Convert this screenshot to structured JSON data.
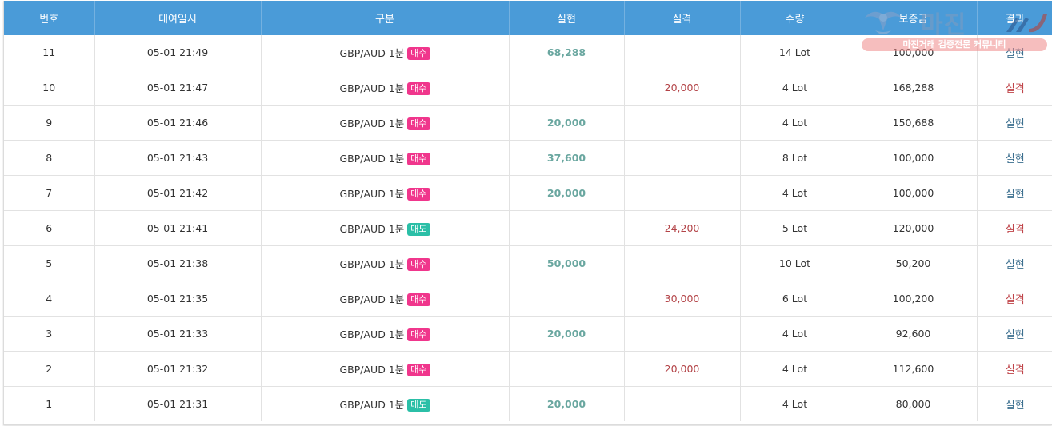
{
  "table": {
    "headers": [
      "번호",
      "대여일시",
      "구분",
      "실현",
      "실격",
      "수량",
      "보증금",
      "결과"
    ],
    "rows": [
      {
        "no": "11",
        "datetime": "05-01 21:49",
        "pair": "GBP/AUD 1분",
        "side": "매수",
        "side_type": "buy",
        "profit": "68,288",
        "loss": "",
        "qty": "14 Lot",
        "deposit": "100,000",
        "result": "실현",
        "result_type": "win"
      },
      {
        "no": "10",
        "datetime": "05-01 21:47",
        "pair": "GBP/AUD 1분",
        "side": "매수",
        "side_type": "buy",
        "profit": "",
        "loss": "20,000",
        "qty": "4 Lot",
        "deposit": "168,288",
        "result": "실격",
        "result_type": "loss"
      },
      {
        "no": "9",
        "datetime": "05-01 21:46",
        "pair": "GBP/AUD 1분",
        "side": "매수",
        "side_type": "buy",
        "profit": "20,000",
        "loss": "",
        "qty": "4 Lot",
        "deposit": "150,688",
        "result": "실현",
        "result_type": "win"
      },
      {
        "no": "8",
        "datetime": "05-01 21:43",
        "pair": "GBP/AUD 1분",
        "side": "매수",
        "side_type": "buy",
        "profit": "37,600",
        "loss": "",
        "qty": "8 Lot",
        "deposit": "100,000",
        "result": "실현",
        "result_type": "win"
      },
      {
        "no": "7",
        "datetime": "05-01 21:42",
        "pair": "GBP/AUD 1분",
        "side": "매수",
        "side_type": "buy",
        "profit": "20,000",
        "loss": "",
        "qty": "4 Lot",
        "deposit": "100,000",
        "result": "실현",
        "result_type": "win"
      },
      {
        "no": "6",
        "datetime": "05-01 21:41",
        "pair": "GBP/AUD 1분",
        "side": "매도",
        "side_type": "sell",
        "profit": "",
        "loss": "24,200",
        "qty": "5 Lot",
        "deposit": "120,000",
        "result": "실격",
        "result_type": "loss"
      },
      {
        "no": "5",
        "datetime": "05-01 21:38",
        "pair": "GBP/AUD 1분",
        "side": "매수",
        "side_type": "buy",
        "profit": "50,000",
        "loss": "",
        "qty": "10 Lot",
        "deposit": "50,200",
        "result": "실현",
        "result_type": "win"
      },
      {
        "no": "4",
        "datetime": "05-01 21:35",
        "pair": "GBP/AUD 1분",
        "side": "매수",
        "side_type": "buy",
        "profit": "",
        "loss": "30,000",
        "qty": "6 Lot",
        "deposit": "100,200",
        "result": "실격",
        "result_type": "loss"
      },
      {
        "no": "3",
        "datetime": "05-01 21:33",
        "pair": "GBP/AUD 1분",
        "side": "매수",
        "side_type": "buy",
        "profit": "20,000",
        "loss": "",
        "qty": "4 Lot",
        "deposit": "92,600",
        "result": "실현",
        "result_type": "win"
      },
      {
        "no": "2",
        "datetime": "05-01 21:32",
        "pair": "GBP/AUD 1분",
        "side": "매수",
        "side_type": "buy",
        "profit": "",
        "loss": "20,000",
        "qty": "4 Lot",
        "deposit": "112,600",
        "result": "실격",
        "result_type": "loss"
      },
      {
        "no": "1",
        "datetime": "05-01 21:31",
        "pair": "GBP/AUD 1분",
        "side": "매도",
        "side_type": "sell",
        "profit": "20,000",
        "loss": "",
        "qty": "4 Lot",
        "deposit": "80,000",
        "result": "실현",
        "result_type": "win"
      }
    ]
  },
  "watermark": {
    "title": "마진",
    "subtitle": "마진거래 검증전문 커뮤니티"
  },
  "colors": {
    "header_bg": "#4a9bd8",
    "buy_badge": "#f0368c",
    "sell_badge": "#2bbfa7",
    "profit_text": "#6aa7a0",
    "loss_text": "#b34347"
  }
}
